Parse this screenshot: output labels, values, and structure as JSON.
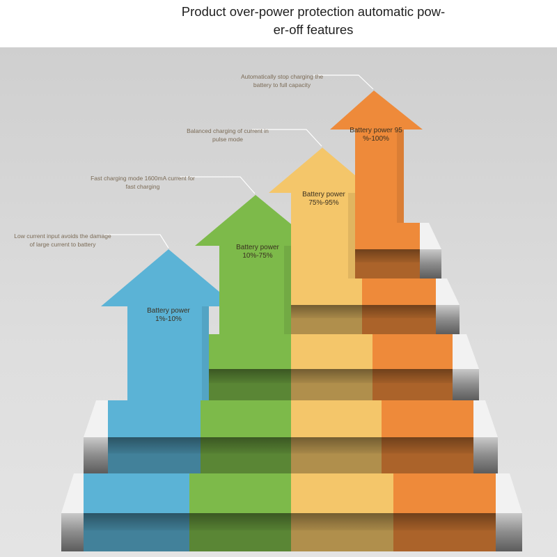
{
  "title": {
    "line1": "Product over-power protection automatic pow-",
    "line2": "er-off features"
  },
  "colors": {
    "blue": "#5bb3d6",
    "green": "#7dba4a",
    "yellow": "#f4c66a",
    "orange": "#ee8a3a",
    "background": "#d9d9d9"
  },
  "stages": [
    {
      "id": "blue",
      "label_line1": "Battery power",
      "label_line2": "1%-10%",
      "callout_line1": "Low current input avoids the damage",
      "callout_line2": "of large current to battery"
    },
    {
      "id": "green",
      "label_line1": "Battery power",
      "label_line2": "10%-75%",
      "callout_line1": "Fast charging mode 1600mA current for",
      "callout_line2": "fast charging"
    },
    {
      "id": "yellow",
      "label_line1": "Battery power",
      "label_line2": "75%-95%",
      "callout_line1": "Balanced charging of current in",
      "callout_line2": "pulse mode"
    },
    {
      "id": "orange",
      "label_line1": "Battery power 95",
      "label_line2": "%-100%",
      "callout_line1": "Automatically stop charging the",
      "callout_line2": "battery to full capacity"
    }
  ]
}
